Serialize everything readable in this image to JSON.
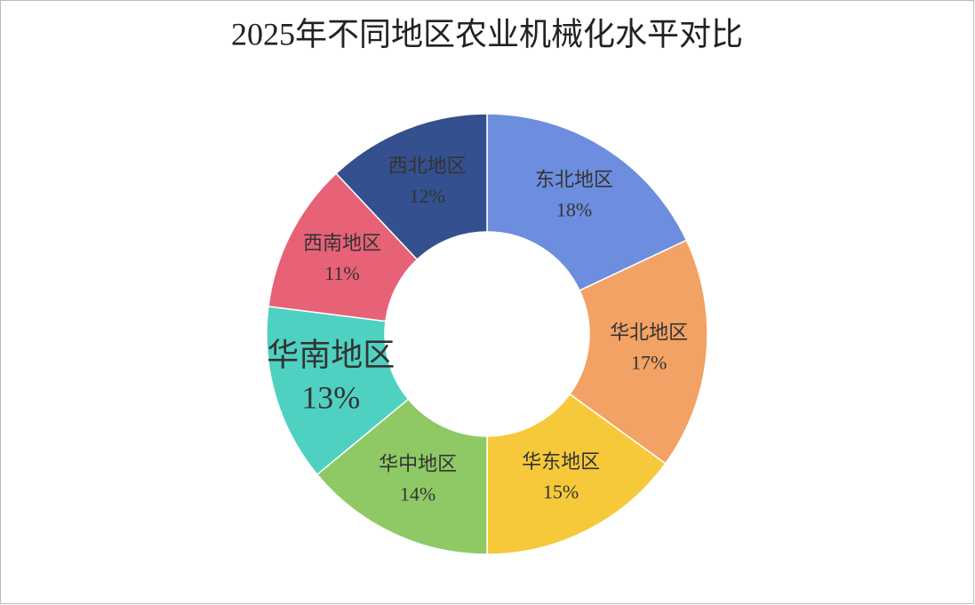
{
  "chart_data": {
    "type": "donut",
    "title": "2025年不同地区农业机械化水平对比",
    "categories": [
      "东北地区",
      "华北地区",
      "华东地区",
      "华中地区",
      "华南地区",
      "西南地区",
      "西北地区"
    ],
    "values": [
      18,
      17,
      15,
      14,
      13,
      11,
      12
    ],
    "value_labels": [
      "18%",
      "17%",
      "15%",
      "14%",
      "13%",
      "11%",
      "12%"
    ],
    "colors": [
      "#6d8ede",
      "#f2a264",
      "#f6c93a",
      "#8fc965",
      "#4fd1c2",
      "#e76277",
      "#34508f"
    ]
  }
}
